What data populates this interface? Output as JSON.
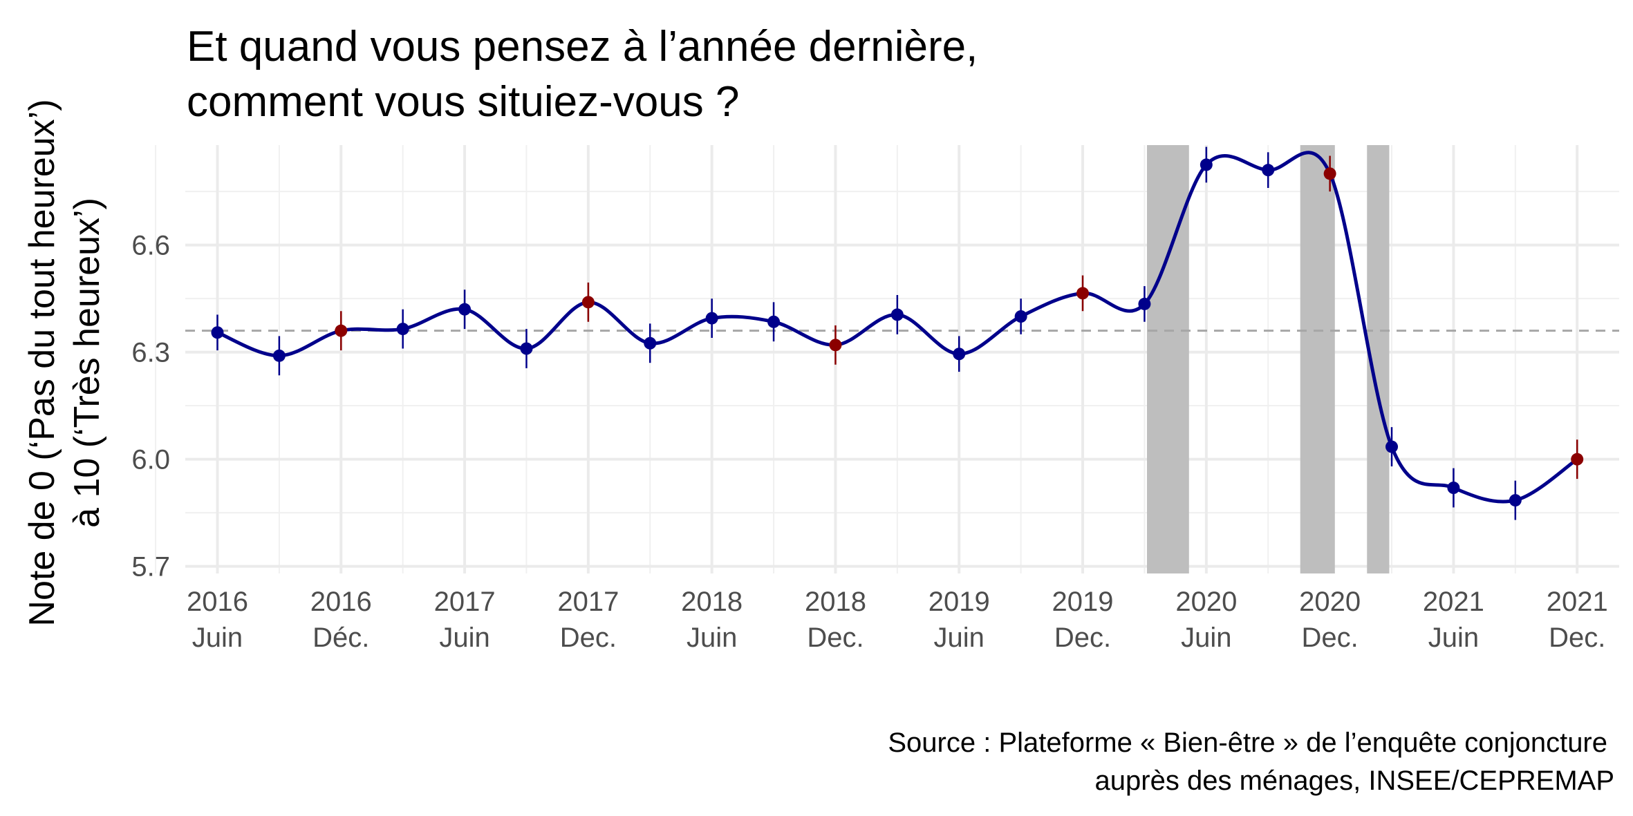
{
  "chart_data": {
    "type": "line",
    "title_lines": [
      "Et quand vous pensez à l’année dernière,",
      "comment vous situiez-vous ?"
    ],
    "ylabel_lines": [
      "Note de 0 (‘Pas du tout heureux’)",
      "à 10 (‘Très heureux’)"
    ],
    "caption_lines": [
      "Source : Plateforme « Bien-être » de l’enquête conjoncture",
      "auprès des ménages, INSEE/CEPREMAP"
    ],
    "ylim": [
      5.68,
      6.88
    ],
    "xlim": [
      2016.29,
      2022.09
    ],
    "y_ticks": [
      {
        "value": 5.7,
        "label": "5.7"
      },
      {
        "value": 6.0,
        "label": "6.0"
      },
      {
        "value": 6.3,
        "label": "6.3"
      },
      {
        "value": 6.6,
        "label": "6.6"
      }
    ],
    "x_ticks": [
      {
        "x": 2016.42,
        "year": "2016",
        "period": "Juin"
      },
      {
        "x": 2016.92,
        "year": "2016",
        "period": "Déc."
      },
      {
        "x": 2017.42,
        "year": "2017",
        "period": "Juin"
      },
      {
        "x": 2017.92,
        "year": "2017",
        "period": "Dec."
      },
      {
        "x": 2018.42,
        "year": "2018",
        "period": "Juin"
      },
      {
        "x": 2018.92,
        "year": "2018",
        "period": "Dec."
      },
      {
        "x": 2019.42,
        "year": "2019",
        "period": "Juin"
      },
      {
        "x": 2019.92,
        "year": "2019",
        "period": "Dec."
      },
      {
        "x": 2020.42,
        "year": "2020",
        "period": "Juin"
      },
      {
        "x": 2020.92,
        "year": "2020",
        "period": "Dec."
      },
      {
        "x": 2021.42,
        "year": "2021",
        "period": "Juin"
      },
      {
        "x": 2021.92,
        "year": "2021",
        "period": "Dec."
      }
    ],
    "reference_line": {
      "y": 6.36,
      "style": "dashed"
    },
    "shaded_periods": [
      {
        "start": 2020.18,
        "end": 2020.35
      },
      {
        "start": 2020.8,
        "end": 2020.94
      },
      {
        "start": 2021.07,
        "end": 2021.16
      }
    ],
    "series": [
      {
        "color": "#00008b",
        "highlight_color": "#8b0000",
        "points": [
          {
            "x": 2016.42,
            "y": 6.355,
            "lo": 6.305,
            "hi": 6.405,
            "highlight": false
          },
          {
            "x": 2016.67,
            "y": 6.29,
            "lo": 6.235,
            "hi": 6.345,
            "highlight": false
          },
          {
            "x": 2016.92,
            "y": 6.36,
            "lo": 6.305,
            "hi": 6.415,
            "highlight": true
          },
          {
            "x": 2017.17,
            "y": 6.365,
            "lo": 6.31,
            "hi": 6.42,
            "highlight": false
          },
          {
            "x": 2017.42,
            "y": 6.42,
            "lo": 6.365,
            "hi": 6.475,
            "highlight": false
          },
          {
            "x": 2017.67,
            "y": 6.31,
            "lo": 6.255,
            "hi": 6.365,
            "highlight": false
          },
          {
            "x": 2017.92,
            "y": 6.44,
            "lo": 6.385,
            "hi": 6.495,
            "highlight": true
          },
          {
            "x": 2018.17,
            "y": 6.325,
            "lo": 6.27,
            "hi": 6.38,
            "highlight": false
          },
          {
            "x": 2018.42,
            "y": 6.395,
            "lo": 6.34,
            "hi": 6.45,
            "highlight": false
          },
          {
            "x": 2018.67,
            "y": 6.385,
            "lo": 6.33,
            "hi": 6.44,
            "highlight": false
          },
          {
            "x": 2018.92,
            "y": 6.32,
            "lo": 6.265,
            "hi": 6.375,
            "highlight": true
          },
          {
            "x": 2019.17,
            "y": 6.405,
            "lo": 6.35,
            "hi": 6.46,
            "highlight": false
          },
          {
            "x": 2019.42,
            "y": 6.295,
            "lo": 6.245,
            "hi": 6.345,
            "highlight": false
          },
          {
            "x": 2019.67,
            "y": 6.4,
            "lo": 6.35,
            "hi": 6.45,
            "highlight": false
          },
          {
            "x": 2019.92,
            "y": 6.465,
            "lo": 6.415,
            "hi": 6.515,
            "highlight": true
          },
          {
            "x": 2020.17,
            "y": 6.435,
            "lo": 6.385,
            "hi": 6.485,
            "highlight": false
          },
          {
            "x": 2020.42,
            "y": 6.825,
            "lo": 6.775,
            "hi": 6.875,
            "highlight": false
          },
          {
            "x": 2020.67,
            "y": 6.81,
            "lo": 6.76,
            "hi": 6.86,
            "highlight": false
          },
          {
            "x": 2020.92,
            "y": 6.8,
            "lo": 6.75,
            "hi": 6.85,
            "highlight": true
          },
          {
            "x": 2021.17,
            "y": 6.035,
            "lo": 5.98,
            "hi": 6.09,
            "highlight": false
          },
          {
            "x": 2021.42,
            "y": 5.92,
            "lo": 5.865,
            "hi": 5.975,
            "highlight": false
          },
          {
            "x": 2021.67,
            "y": 5.885,
            "lo": 5.83,
            "hi": 5.94,
            "highlight": false
          },
          {
            "x": 2021.92,
            "y": 6.0,
            "lo": 5.945,
            "hi": 6.055,
            "highlight": true
          }
        ]
      }
    ]
  }
}
